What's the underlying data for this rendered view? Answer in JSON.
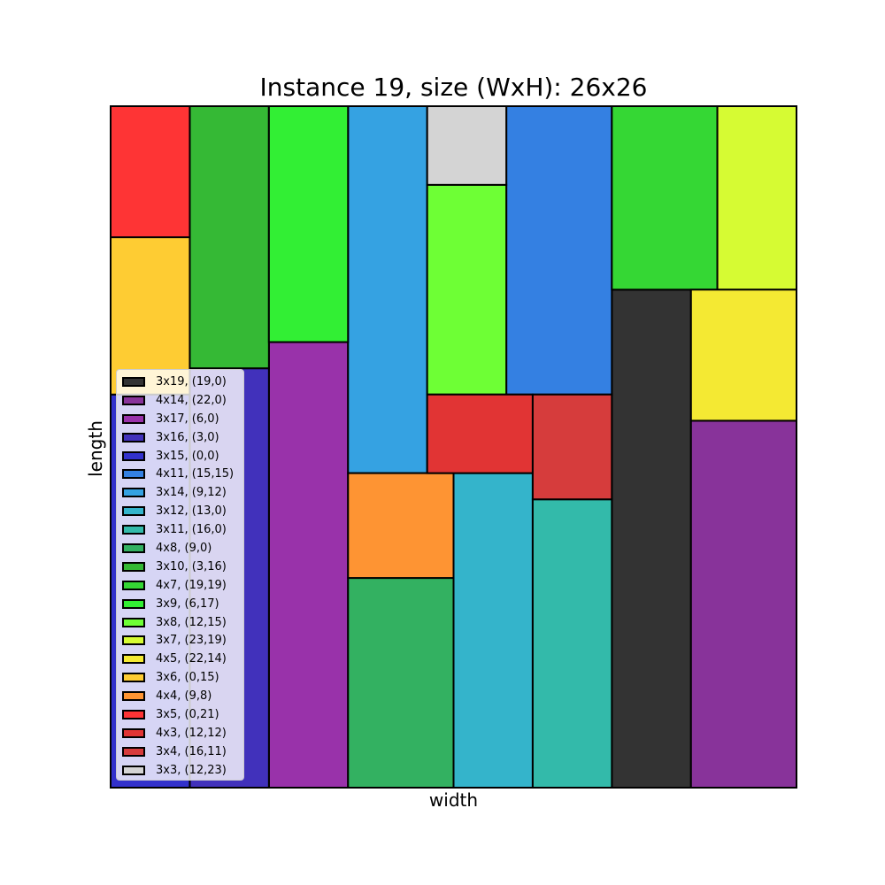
{
  "chart_data": {
    "type": "rectangle-packing",
    "title": "Instance 19, size (WxH): 26x26",
    "xlabel": "width",
    "ylabel": "length",
    "xlim": [
      0,
      26
    ],
    "ylim": [
      0,
      26
    ],
    "grid": false,
    "legend_position": "lower-left",
    "rectangles": [
      {
        "label": "3x19, (19,0)",
        "w": 3,
        "h": 19,
        "x": 19,
        "y": 0,
        "color": "#333333"
      },
      {
        "label": "4x14, (22,0)",
        "w": 4,
        "h": 14,
        "x": 22,
        "y": 0,
        "color": "#88339a"
      },
      {
        "label": "3x17, (6,0)",
        "w": 3,
        "h": 17,
        "x": 6,
        "y": 0,
        "color": "#9932aa"
      },
      {
        "label": "3x16, (3,0)",
        "w": 3,
        "h": 16,
        "x": 3,
        "y": 0,
        "color": "#4131bb"
      },
      {
        "label": "3x15, (0,0)",
        "w": 3,
        "h": 15,
        "x": 0,
        "y": 0,
        "color": "#3231cc"
      },
      {
        "label": "4x11, (15,15)",
        "w": 4,
        "h": 11,
        "x": 15,
        "y": 15,
        "color": "#3480e2"
      },
      {
        "label": "3x14, (9,12)",
        "w": 3,
        "h": 14,
        "x": 9,
        "y": 12,
        "color": "#35a2e2"
      },
      {
        "label": "3x12, (13,0)",
        "w": 3,
        "h": 12,
        "x": 13,
        "y": 0,
        "color": "#34b4cb"
      },
      {
        "label": "3x11, (16,0)",
        "w": 3,
        "h": 11,
        "x": 16,
        "y": 0,
        "color": "#33baaa"
      },
      {
        "label": "4x8, (9,0)",
        "w": 4,
        "h": 8,
        "x": 9,
        "y": 0,
        "color": "#33b161"
      },
      {
        "label": "3x10, (3,16)",
        "w": 3,
        "h": 10,
        "x": 3,
        "y": 16,
        "color": "#35b935"
      },
      {
        "label": "4x7, (19,19)",
        "w": 4,
        "h": 7,
        "x": 19,
        "y": 19,
        "color": "#35d734"
      },
      {
        "label": "3x9, (6,17)",
        "w": 3,
        "h": 9,
        "x": 6,
        "y": 17,
        "color": "#32ef34"
      },
      {
        "label": "3x8, (12,15)",
        "w": 3,
        "h": 8,
        "x": 12,
        "y": 15,
        "color": "#6eff35"
      },
      {
        "label": "3x7, (23,19)",
        "w": 3,
        "h": 7,
        "x": 23,
        "y": 19,
        "color": "#d6fb33"
      },
      {
        "label": "4x5, (22,14)",
        "w": 4,
        "h": 5,
        "x": 22,
        "y": 14,
        "color": "#f4e933"
      },
      {
        "label": "3x6, (0,15)",
        "w": 3,
        "h": 6,
        "x": 0,
        "y": 15,
        "color": "#fecc33"
      },
      {
        "label": "4x4, (9,8)",
        "w": 4,
        "h": 4,
        "x": 9,
        "y": 8,
        "color": "#fe9433"
      },
      {
        "label": "3x5, (0,21)",
        "w": 3,
        "h": 5,
        "x": 0,
        "y": 21,
        "color": "#fe3435"
      },
      {
        "label": "4x3, (12,12)",
        "w": 4,
        "h": 3,
        "x": 12,
        "y": 12,
        "color": "#e13434"
      },
      {
        "label": "3x4, (16,11)",
        "w": 3,
        "h": 4,
        "x": 16,
        "y": 11,
        "color": "#d63c3c"
      },
      {
        "label": "3x3, (12,23)",
        "w": 3,
        "h": 3,
        "x": 12,
        "y": 23,
        "color": "#d4d4d4"
      }
    ]
  }
}
